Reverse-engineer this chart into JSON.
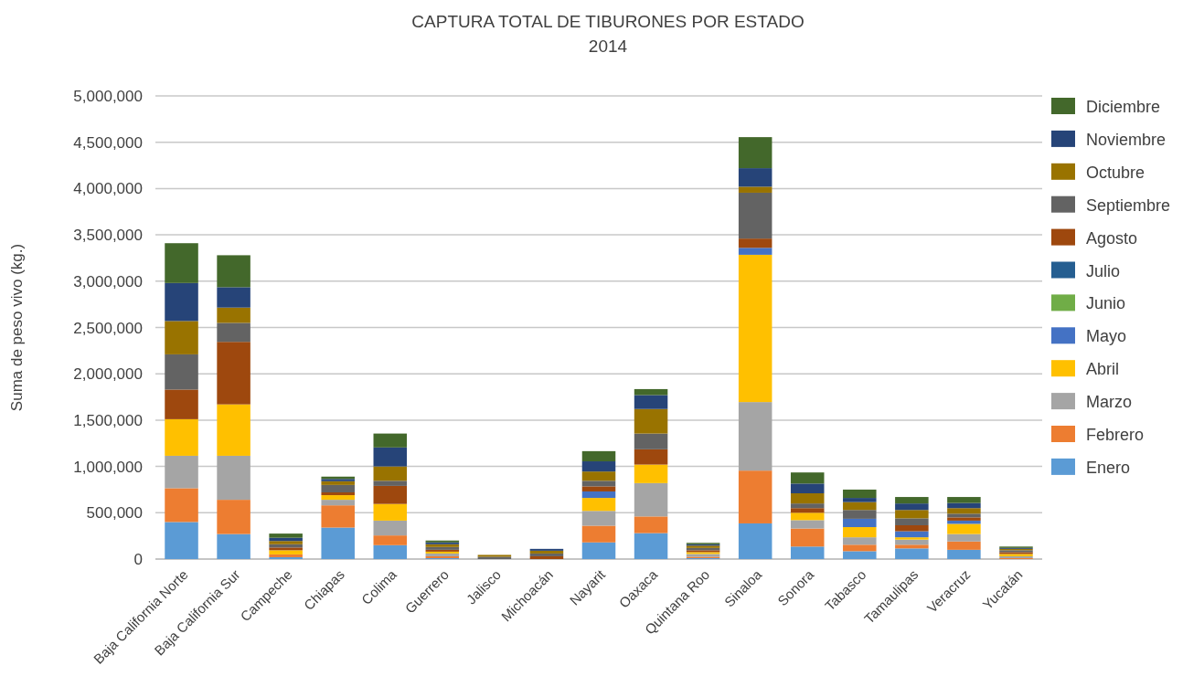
{
  "chart_data": {
    "type": "bar",
    "title": "CAPTURA TOTAL DE TIBURONES POR ESTADO",
    "subtitle": "2014",
    "ylabel": "Suma de peso vivo (kg.)",
    "categories": [
      "Baja California Norte",
      "Baja California Sur",
      "Campeche",
      "Chiapas",
      "Colima",
      "Guerrero",
      "Jalisco",
      "Michoacán",
      "Nayarit",
      "Oaxaca",
      "Quintana Roo",
      "Sinaloa",
      "Sonora",
      "Tabasco",
      "Tamaulipas",
      "Veracruz",
      "Yucatán"
    ],
    "stacked": true,
    "grid": "y",
    "legend": "right",
    "ylim": [
      0,
      5000000
    ],
    "yticks": [
      {
        "value": 0,
        "label": "0"
      },
      {
        "value": 500000,
        "label": "500,000"
      },
      {
        "value": 1000000,
        "label": "1,000,000"
      },
      {
        "value": 1500000,
        "label": "1,500,000"
      },
      {
        "value": 2000000,
        "label": "2,000,000"
      },
      {
        "value": 2500000,
        "label": "2,500,000"
      },
      {
        "value": 3000000,
        "label": "3,000,000"
      },
      {
        "value": 3500000,
        "label": "3,500,000"
      },
      {
        "value": 4000000,
        "label": "4,000,000"
      },
      {
        "value": 4500000,
        "label": "4,500,000"
      },
      {
        "value": 5000000,
        "label": "5,000,000"
      }
    ],
    "series": [
      {
        "name": "Enero",
        "color": "#5b9bd5",
        "values": [
          400000,
          270000,
          20000,
          340000,
          150000,
          10000,
          0,
          0,
          180000,
          280000,
          10000,
          385000,
          135000,
          85000,
          115000,
          100000,
          null
        ]
      },
      {
        "name": "Febrero",
        "color": "#ed7d31",
        "values": [
          365000,
          370000,
          30000,
          240000,
          105000,
          20000,
          0,
          0,
          180000,
          180000,
          15000,
          570000,
          195000,
          70000,
          40000,
          90000,
          10000
        ]
      },
      {
        "name": "Marzo",
        "color": "#a5a5a5",
        "values": [
          350000,
          475000,
          null,
          60000,
          160000,
          30000,
          null,
          0,
          160000,
          360000,
          30000,
          740000,
          90000,
          80000,
          55000,
          80000,
          20000
        ]
      },
      {
        "name": "Abril",
        "color": "#ffc000",
        "values": [
          395000,
          555000,
          45000,
          50000,
          180000,
          20000,
          0,
          0,
          140000,
          200000,
          20000,
          1590000,
          80000,
          110000,
          25000,
          110000,
          25000
        ]
      },
      {
        "name": "Mayo",
        "color": "#4472c4",
        "values": [
          0,
          0,
          0,
          0,
          0,
          0,
          0,
          0,
          70000,
          0,
          0,
          75000,
          0,
          90000,
          65000,
          35000,
          0
        ]
      },
      {
        "name": "Junio",
        "color": "#70ad47",
        "values": [
          0,
          0,
          0,
          0,
          0,
          0,
          0,
          0,
          0,
          0,
          0,
          0,
          0,
          0,
          0,
          0,
          0
        ]
      },
      {
        "name": "Julio",
        "color": "#255e91",
        "values": [
          0,
          0,
          0,
          0,
          0,
          0,
          0,
          0,
          0,
          0,
          0,
          0,
          0,
          0,
          0,
          0,
          0
        ]
      },
      {
        "name": "Agosto",
        "color": "#9e480e",
        "values": [
          320000,
          675000,
          30000,
          30000,
          195000,
          20000,
          0,
          30000,
          55000,
          165000,
          20000,
          100000,
          50000,
          0,
          65000,
          35000,
          20000
        ]
      },
      {
        "name": "Septiembre",
        "color": "#636363",
        "values": [
          380000,
          205000,
          35000,
          80000,
          55000,
          30000,
          25000,
          30000,
          60000,
          170000,
          25000,
          495000,
          50000,
          95000,
          75000,
          40000,
          20000
        ]
      },
      {
        "name": "Octubre",
        "color": "#997300",
        "values": [
          360000,
          165000,
          35000,
          40000,
          155000,
          30000,
          20000,
          30000,
          100000,
          265000,
          25000,
          65000,
          110000,
          85000,
          90000,
          60000,
          15000
        ]
      },
      {
        "name": "Noviembre",
        "color": "#264478",
        "values": [
          410000,
          220000,
          35000,
          25000,
          205000,
          20000,
          0,
          20000,
          110000,
          150000,
          15000,
          200000,
          105000,
          45000,
          70000,
          55000,
          10000
        ]
      },
      {
        "name": "Diciembre",
        "color": "#43682b",
        "values": [
          430000,
          345000,
          45000,
          25000,
          150000,
          20000,
          0,
          0,
          110000,
          65000,
          15000,
          335000,
          120000,
          90000,
          70000,
          65000,
          15000
        ]
      }
    ]
  }
}
